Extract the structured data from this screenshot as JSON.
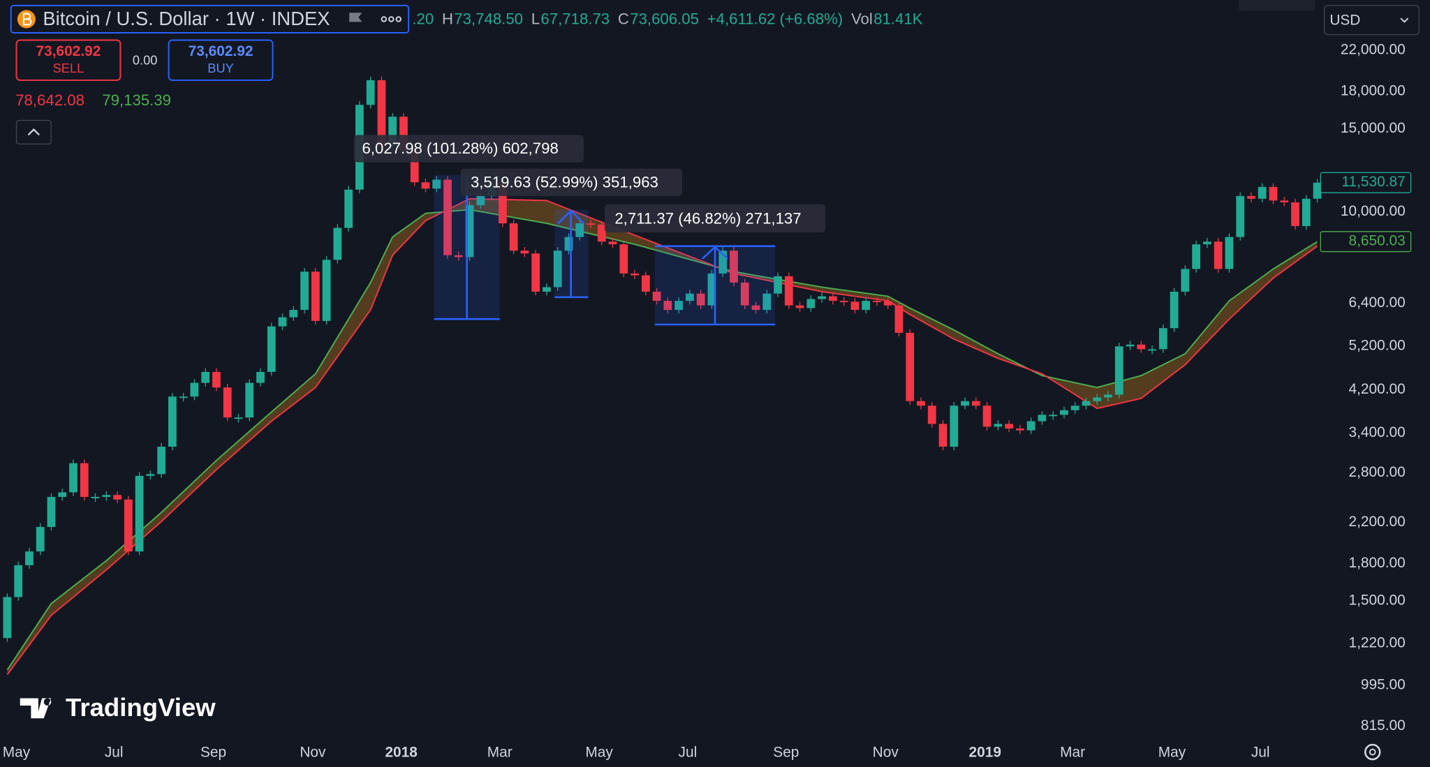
{
  "header": {
    "symbol": "Bitcoin / U.S. Dollar · 1W · INDEX",
    "ohlc": [
      {
        "value": ".20"
      },
      {
        "label": "H",
        "value": "73,748.50"
      },
      {
        "label": "L",
        "value": "67,718.73"
      },
      {
        "label": "C",
        "value": "73,606.05"
      },
      {
        "value": "+4,611.62 (+6.68%)"
      },
      {
        "label": "Vol",
        "value": "81.41K"
      }
    ]
  },
  "trade": {
    "sell_price": "73,602.92",
    "sell_label": "SELL",
    "spread": "0.00",
    "buy_price": "73,602.92",
    "buy_label": "BUY",
    "bid": "78,642.08",
    "ask": "79,135.39"
  },
  "currency": "USD",
  "brand": "TradingView",
  "chart_data": {
    "type": "candlestick",
    "log_scale": true,
    "grid": false,
    "up_color": "#22ab94",
    "down_color": "#f23645",
    "open": 1252,
    "close": [
      1529,
      1786,
      1910,
      2152,
      2492,
      2548,
      2937,
      2492,
      2492,
      2515,
      2460,
      1910,
      2761,
      2785,
      3183,
      4064,
      4064,
      4345,
      4583,
      4248,
      3670,
      3670,
      4345,
      4583,
      5722,
      5982,
      6200,
      7471,
      5876,
      7916,
      9249,
      11145,
      16850,
      19000,
      13796,
      15904,
      13493,
      11550,
      11200,
      11700,
      8094,
      8021,
      10333,
      10804,
      11550,
      9456,
      8276,
      8164,
      6776,
      6928,
      8276,
      8846,
      9456,
      9400,
      8650,
      8536,
      7405,
      7339,
      6776,
      6481,
      6200,
      6481,
      6714,
      6338,
      7405,
      8276,
      7084,
      6338,
      6200,
      6714,
      7306,
      6338,
      6255,
      6538,
      6626,
      6481,
      6453,
      6200,
      6481,
      6470,
      6338,
      5546,
      3975,
      3887,
      3557,
      3183,
      3887,
      3975,
      3887,
      3509,
      3557,
      3478,
      3447,
      3604,
      3718,
      3718,
      3802,
      3887,
      3975,
      4046,
      4101,
      5190,
      5236,
      5119,
      5119,
      5672,
      6776,
      7570,
      8536,
      8650,
      7570,
      8846,
      10804,
      10661,
      11295,
      10567,
      10474,
      9330,
      10661,
      11530.87
    ],
    "bands": [
      {
        "color": "#4caf50",
        "x": [
          0,
          4,
          9,
          14,
          19,
          24,
          28,
          33,
          35,
          38,
          42,
          49,
          57,
          66,
          74,
          80,
          82,
          86,
          90,
          94,
          99,
          103,
          107,
          111,
          115,
          119
        ],
        "values": [
          1072,
          1482,
          1826,
          2310,
          2977,
          3769,
          4541,
          7084,
          8846,
          9929,
          10107,
          9456,
          8536,
          7471,
          6928,
          6626,
          6255,
          5621,
          5007,
          4501,
          4248,
          4501,
          5007,
          6481,
          7570,
          8650.03
        ]
      },
      {
        "color": "#f23645",
        "x": [
          0,
          4,
          9,
          14,
          19,
          24,
          28,
          33,
          35,
          38,
          42,
          49,
          57,
          66,
          74,
          80,
          82,
          86,
          90,
          94,
          99,
          103,
          107,
          111,
          115,
          119
        ],
        "values": [
          1048,
          1399,
          1746,
          2210,
          2847,
          3604,
          4248,
          6200,
          8094,
          9583,
          10661,
          10567,
          8925,
          7405,
          6776,
          6481,
          6063,
          5377,
          4897,
          4541,
          3835,
          4028,
          4748,
          5929,
          7242,
          8461
        ]
      }
    ],
    "band_fill": "#6b4a1f",
    "ylim": [
      761,
      28090
    ],
    "yticks": [
      {
        "value": 22000,
        "label": "22,000.00"
      },
      {
        "value": 18000,
        "label": "18,000.00"
      },
      {
        "value": 15000,
        "label": "15,000.00"
      },
      {
        "value": 10000,
        "label": "10,000.00"
      },
      {
        "value": 6400,
        "label": "6,400.00"
      },
      {
        "value": 5200,
        "label": "5,200.00"
      },
      {
        "value": 4200,
        "label": "4,200.00"
      },
      {
        "value": 3400,
        "label": "3,400.00"
      },
      {
        "value": 2800,
        "label": "2,800.00"
      },
      {
        "value": 2200,
        "label": "2,200.00"
      },
      {
        "value": 1800,
        "label": "1,800.00"
      },
      {
        "value": 1500,
        "label": "1,500.00"
      },
      {
        "value": 1220,
        "label": "1,220.00"
      },
      {
        "value": 995,
        "label": "995.00"
      },
      {
        "value": 815,
        "label": "815.00"
      }
    ],
    "xlim": [
      -0.66,
      119.05
    ],
    "xticks": [
      {
        "value": 0.83,
        "label": "May"
      },
      {
        "value": 9.69,
        "label": "Jul"
      },
      {
        "value": 18.72,
        "label": "Sep"
      },
      {
        "value": 27.75,
        "label": "Nov"
      },
      {
        "value": 35.79,
        "label": "2018"
      },
      {
        "value": 44.74,
        "label": "Mar"
      },
      {
        "value": 53.77,
        "label": "May"
      },
      {
        "value": 61.81,
        "label": "Jul"
      },
      {
        "value": 70.75,
        "label": "Sep"
      },
      {
        "value": 79.78,
        "label": "Nov"
      },
      {
        "value": 88.82,
        "label": "2019"
      },
      {
        "value": 96.77,
        "label": "Mar"
      },
      {
        "value": 105.8,
        "label": "May"
      },
      {
        "value": 113.84,
        "label": "Jul"
      }
    ],
    "price_labels": [
      {
        "value": 11530.87,
        "label": "11,530.87",
        "color": "#22ab94"
      },
      {
        "value": 8650.03,
        "label": "8,650.03",
        "color": "#4caf50"
      }
    ],
    "annotations": [
      "6,027.98 (101.28%) 602,798",
      "3,519.63 (52.99%) 351,963",
      "2,711.37 (46.82%) 271,137"
    ]
  }
}
